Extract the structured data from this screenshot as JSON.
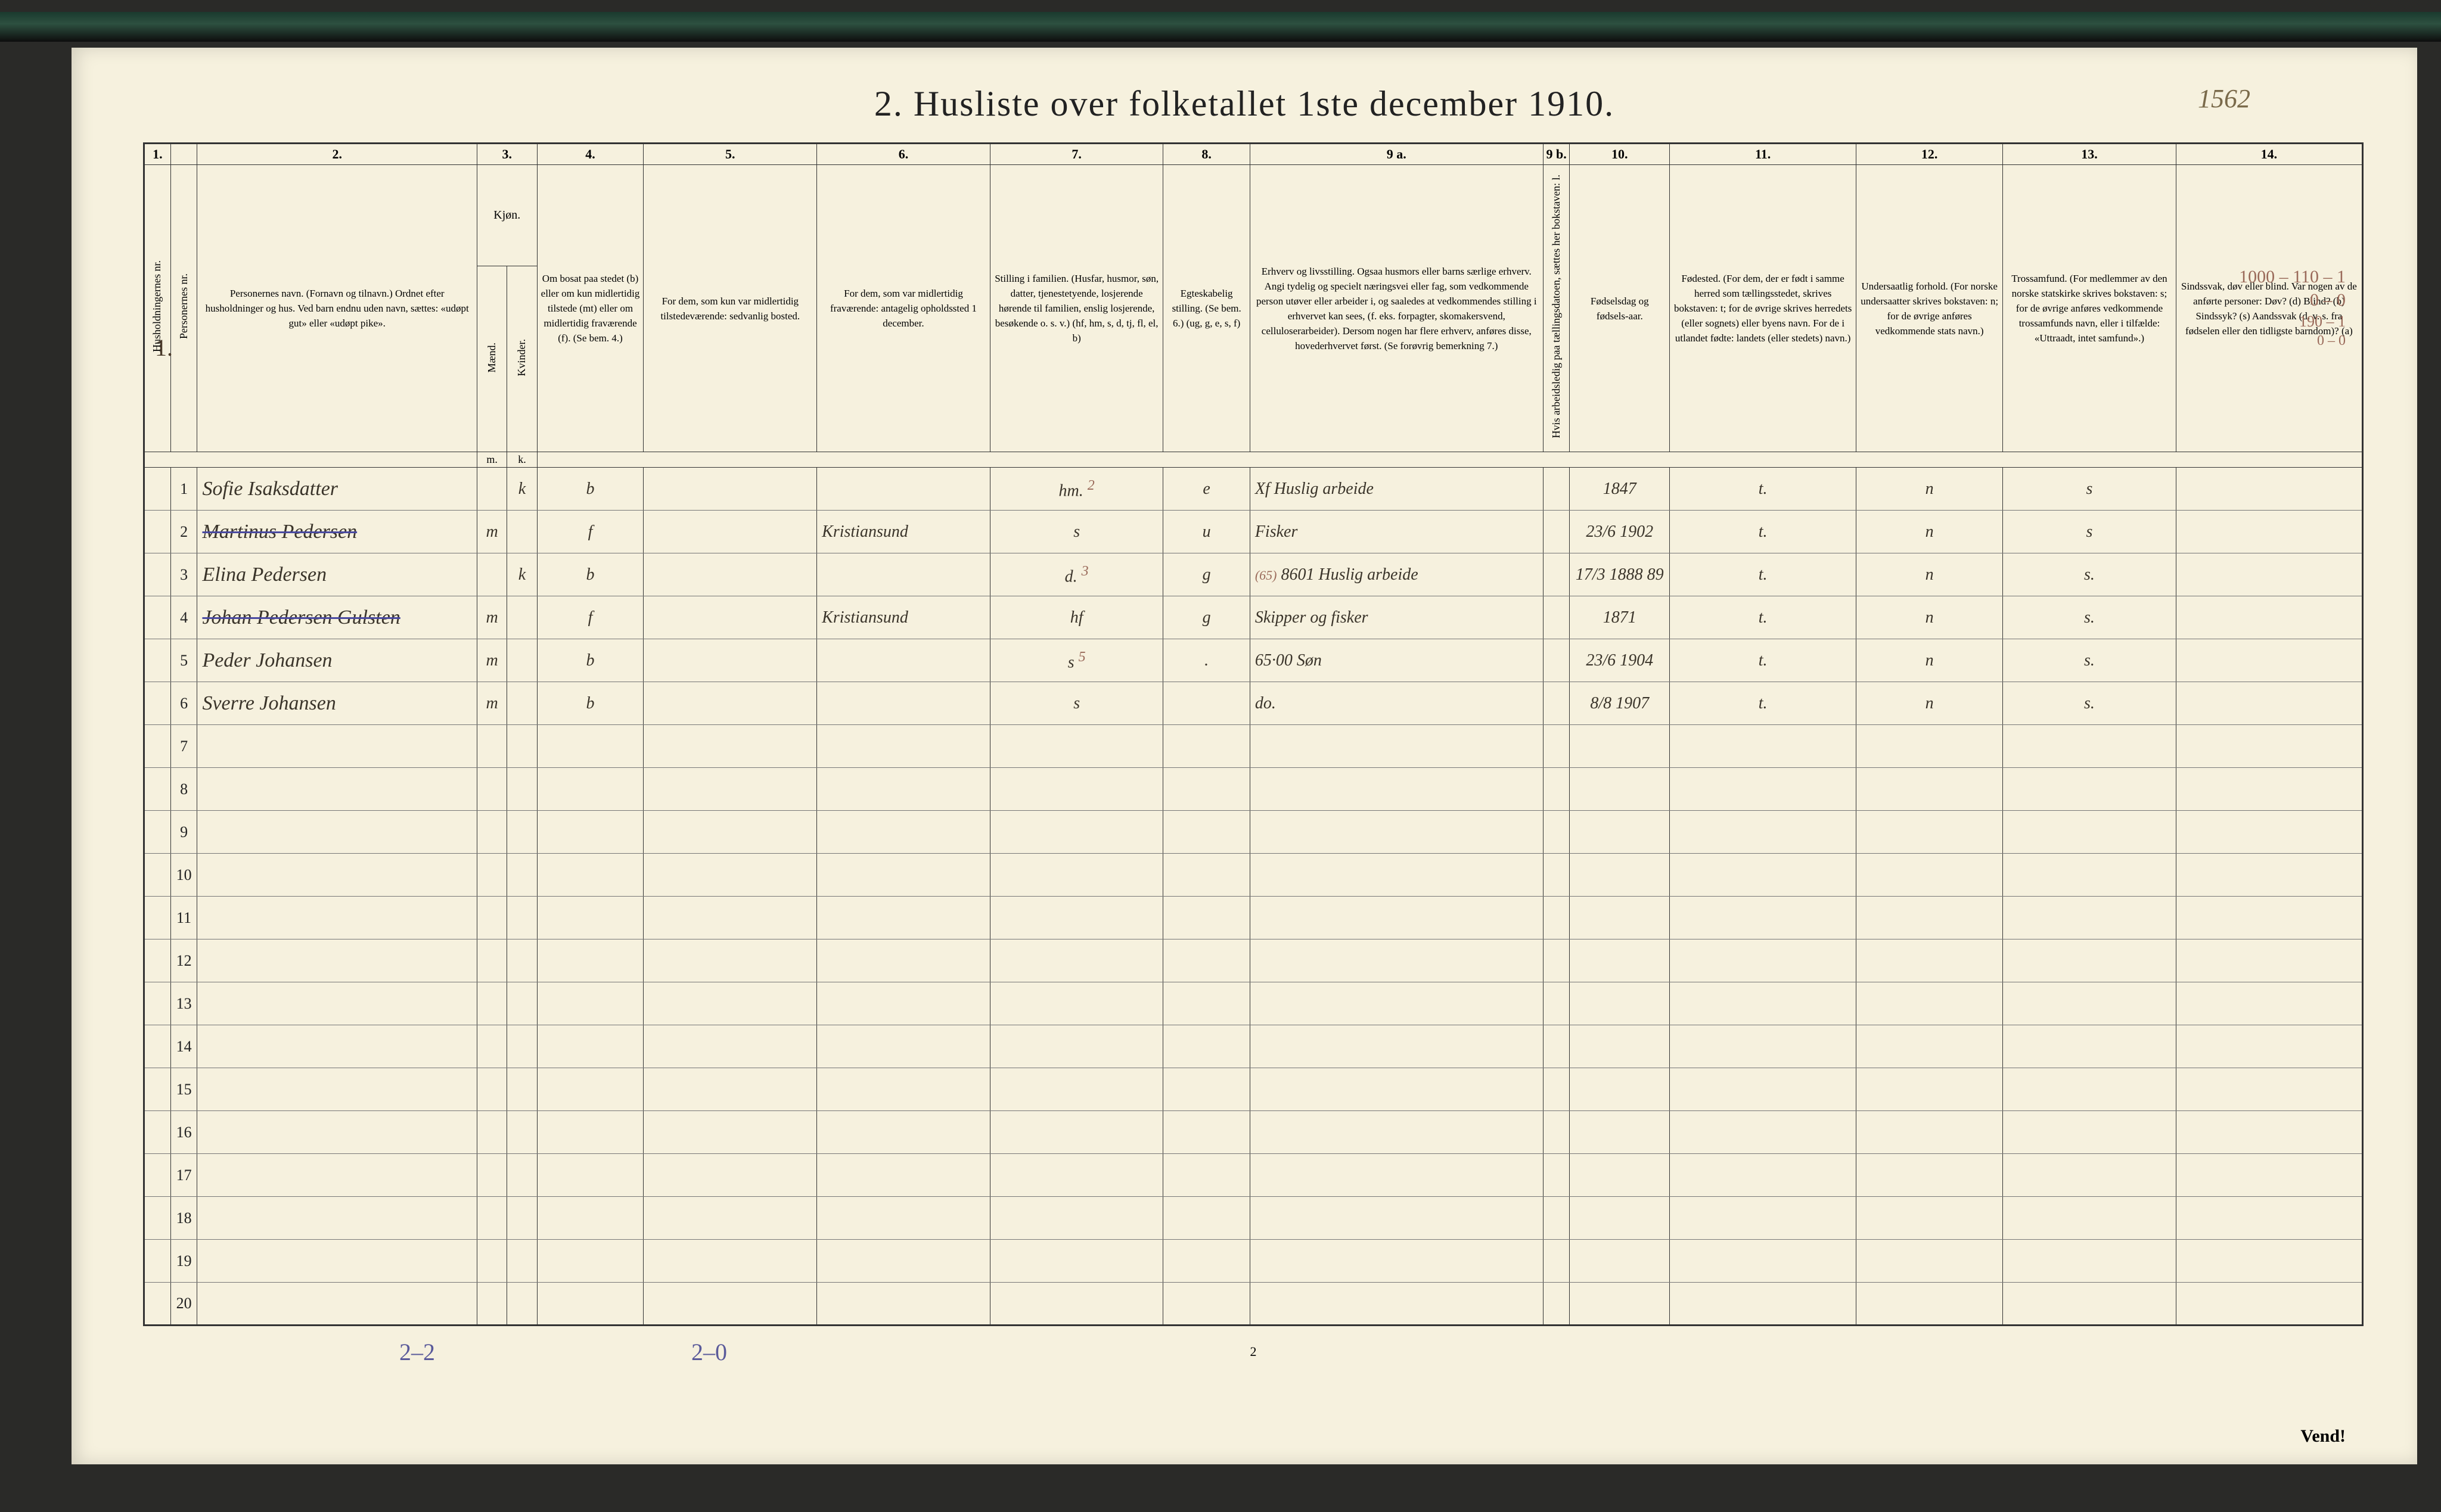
{
  "title": "2.   Husliste over folketallet 1ste december 1910.",
  "page_annotation": "1562",
  "page_number_bottom": "2",
  "vend": "Vend!",
  "margin_household_number": "1.",
  "footer_annotations": {
    "left": "2–2",
    "mid": "2–0"
  },
  "top_right_margin": [
    "1000 – 110 – 1",
    "0 – 0",
    "190 – 1",
    "0 – 0"
  ],
  "colors": {
    "paper": "#f6f1de",
    "ink": "#222222",
    "rule": "#333333",
    "light_rule": "#777777",
    "handwriting": "#3a342a",
    "red_pencil": "#9a6a5a",
    "blue_ink": "#5a5a9a"
  },
  "header_numbers": [
    "1.",
    "",
    "2.",
    "3.",
    "4.",
    "5.",
    "6.",
    "7.",
    "8.",
    "9 a.",
    "9 b.",
    "10.",
    "11.",
    "12.",
    "13.",
    "14."
  ],
  "headers": {
    "c1": "Husholdningernes nr.",
    "c2a": "Personernes nr.",
    "c2": "Personernes navn.\n(Fornavn og tilnavn.)\nOrdnet efter husholdninger og hus.\nVed barn endnu uden navn, sættes: «udøpt gut» eller «udøpt pike».",
    "c3": "Kjøn.",
    "c3_sub": [
      "Mænd.",
      "Kvinder."
    ],
    "c3_foot": [
      "m.",
      "k."
    ],
    "c4": "Om bosat paa stedet (b) eller om kun midlertidig tilstede (mt) eller om midlertidig fraværende (f). (Se bem. 4.)",
    "c5": "For dem, som kun var midlertidig tilstedeværende:\nsedvanlig bosted.",
    "c6": "For dem, som var midlertidig fraværende:\nantagelig opholdssted 1 december.",
    "c7": "Stilling i familien.\n(Husfar, husmor, søn, datter, tjenestetyende, losjerende hørende til familien, enslig losjerende, besøkende o. s. v.)\n(hf, hm, s, d, tj, fl, el, b)",
    "c8": "Egteskabelig stilling.\n(Se bem. 6.)\n(ug, g, e, s, f)",
    "c9a": "Erhverv og livsstilling.\nOgsaa husmors eller barns særlige erhverv. Angi tydelig og specielt næringsvei eller fag, som vedkommende person utøver eller arbeider i, og saaledes at vedkommendes stilling i erhvervet kan sees, (f. eks. forpagter, skomakersvend, celluloserarbeider). Dersom nogen har flere erhverv, anføres disse, hovederhvervet først.\n(Se forøvrig bemerkning 7.)",
    "c9b": "Hvis arbeidsledig paa tællingsdatoen, sættes her bokstaven: l.",
    "c10": "Fødselsdag og fødsels-aar.",
    "c11": "Fødested.\n(For dem, der er født i samme herred som tællingsstedet, skrives bokstaven: t; for de øvrige skrives herredets (eller sognets) eller byens navn. For de i utlandet fødte: landets (eller stedets) navn.)",
    "c12": "Undersaatlig forhold.\n(For norske undersaatter skrives bokstaven: n; for de øvrige anføres vedkommende stats navn.)",
    "c13": "Trossamfund.\n(For medlemmer av den norske statskirke skrives bokstaven: s; for de øvrige anføres vedkommende trossamfunds navn, eller i tilfælde: «Uttraadt, intet samfund».)",
    "c14": "Sindssvak, døv eller blind.\nVar nogen av de anførte personer:\nDøv? (d)\nBlind? (b)\nSindssyk? (s)\nAandssvak (d. v. s. fra fødselen eller den tidligste barndom)? (a)"
  },
  "rows": [
    {
      "n": "1",
      "name": "Sofie Isaksdatter",
      "sex_m": "",
      "sex_k": "k",
      "res": "b",
      "mt": "",
      "mf": "",
      "fam": "hm.",
      "fam_sup": "2",
      "civ": "e",
      "occ": "Xf Huslig arbeide",
      "birth": "1847",
      "birthplace": "t.",
      "nat": "n",
      "rel": "s"
    },
    {
      "n": "2",
      "name": "Martinus Pedersen",
      "struck": true,
      "sex_m": "m",
      "sex_k": "",
      "res": "f",
      "mt": "",
      "mf": "Kristiansund",
      "fam": "s",
      "civ": "u",
      "occ": "Fisker",
      "birth": "23/6 1902",
      "birthplace": "t.",
      "nat": "n",
      "rel": "s"
    },
    {
      "n": "3",
      "name": "Elina Pedersen",
      "sex_m": "",
      "sex_k": "k",
      "res": "b",
      "mt": "",
      "mf": "",
      "fam": "d.",
      "fam_sup": "3",
      "civ": "g",
      "occ": "8601 Huslig arbeide",
      "occ_sup": "(65)",
      "birth": "17/3 1888 89",
      "birthplace": "t.",
      "nat": "n",
      "rel": "s."
    },
    {
      "n": "4",
      "name": "Johan Pedersen Gulsten",
      "struck": true,
      "sex_m": "m",
      "sex_k": "",
      "res": "f",
      "mt": "",
      "mf": "Kristiansund",
      "fam": "hf",
      "civ": "g",
      "occ": "Skipper og fisker",
      "birth": "1871",
      "birthplace": "t.",
      "nat": "n",
      "rel": "s."
    },
    {
      "n": "5",
      "name": "Peder Johansen",
      "sex_m": "m",
      "sex_k": "",
      "res": "b",
      "mt": "",
      "mf": "",
      "fam": "s",
      "fam_sup": "5",
      "civ": ".",
      "occ": "65·00 Søn",
      "birth": "23/6 1904",
      "birthplace": "t.",
      "nat": "n",
      "rel": "s."
    },
    {
      "n": "6",
      "name": "Sverre Johansen",
      "sex_m": "m",
      "sex_k": "",
      "res": "b",
      "mt": "",
      "mf": "",
      "fam": "s",
      "civ": "",
      "occ": "do.",
      "birth": "8/8 1907",
      "birthplace": "t.",
      "nat": "n",
      "rel": "s."
    },
    {
      "n": "7"
    },
    {
      "n": "8"
    },
    {
      "n": "9"
    },
    {
      "n": "10"
    },
    {
      "n": "11"
    },
    {
      "n": "12"
    },
    {
      "n": "13"
    },
    {
      "n": "14"
    },
    {
      "n": "15"
    },
    {
      "n": "16"
    },
    {
      "n": "17"
    },
    {
      "n": "18"
    },
    {
      "n": "19"
    },
    {
      "n": "20"
    }
  ]
}
